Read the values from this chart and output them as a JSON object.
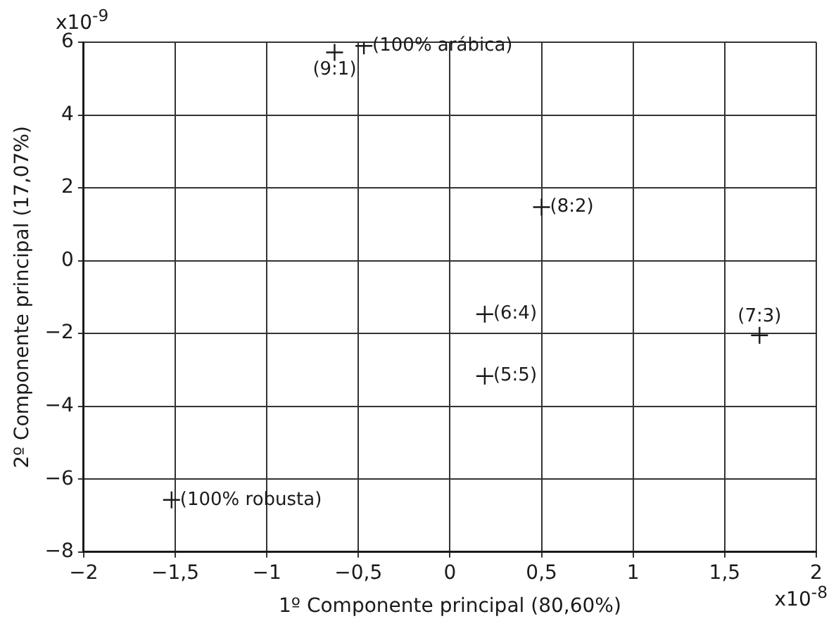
{
  "chart_data": {
    "type": "scatter",
    "xlabel": "1º Componente principal (80,60%)",
    "ylabel": "2º Componente principal (17,07%)",
    "x": [
      -0.47,
      -0.63,
      0.5,
      0.19,
      0.19,
      1.69,
      -1.52
    ],
    "series": [
      {
        "color": "#1a1a1a",
        "values": [
          5.9,
          5.72,
          1.47,
          -1.47,
          -3.17,
          -2.05,
          -6.57
        ]
      }
    ],
    "xlim": [
      -2,
      2
    ],
    "ylim": [
      -8,
      6
    ],
    "xticks": [
      {
        "value": -2,
        "label": "−2"
      },
      {
        "value": -1.5,
        "label": "−1,5"
      },
      {
        "value": -1,
        "label": "−1"
      },
      {
        "value": -0.5,
        "label": "−0,5"
      },
      0,
      {
        "value": 0.5,
        "label": "0,5"
      },
      1,
      {
        "value": 1.5,
        "label": "1,5"
      },
      2
    ],
    "yticks": [
      {
        "value": -8,
        "label": "−8"
      },
      {
        "value": -6,
        "label": "−6"
      },
      {
        "value": -4,
        "label": "−4"
      },
      {
        "value": -2,
        "label": "−2"
      },
      0,
      2,
      4,
      6
    ],
    "grid": true,
    "marker": "cross",
    "annotations": [
      "x10$^{-9}$",
      "x10$^{-8}$",
      {
        "text": "(100% arábica)",
        "x": -0.47,
        "y": 5.9
      },
      {
        "text": "(9:1)",
        "x": -0.63,
        "y": 5.72
      },
      {
        "text": "(8:2)",
        "x": 0.5,
        "y": 1.47
      },
      {
        "text": "(6:4)",
        "x": 0.19,
        "y": -1.47
      },
      {
        "text": "(5:5)",
        "x": 0.19,
        "y": -3.17
      },
      {
        "text": "(7:3)",
        "x": 1.69,
        "y": -2.05
      },
      {
        "text": "(100% robusta)",
        "x": -1.52,
        "y": -6.57
      }
    ]
  }
}
